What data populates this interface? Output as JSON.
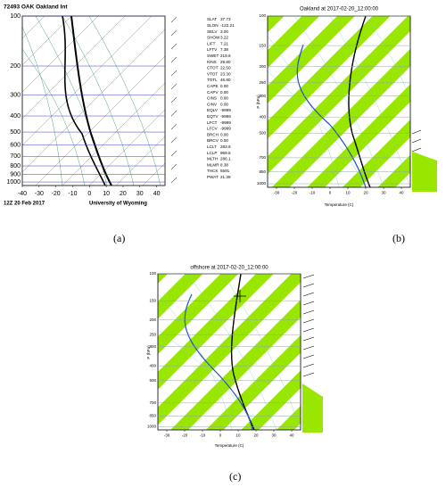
{
  "panels": [
    {
      "label": "(a)",
      "title": "72493 OAK Oakland Int",
      "footer_left": "12Z 20 Feb 2017",
      "footer_right": "University of Wyoming",
      "pressure_range": [
        100,
        1050
      ],
      "pressure_ticks": [
        100,
        200,
        300,
        400,
        500,
        600,
        700,
        800,
        900,
        1000
      ],
      "temperature_range": [
        -40,
        45
      ],
      "temperature_ticks": [
        -40,
        -30,
        -20,
        -10,
        0,
        10,
        20,
        30,
        40
      ],
      "indices": [
        {
          "name": "SLAT",
          "value": "37.73"
        },
        {
          "name": "SLON",
          "value": "-122.21"
        },
        {
          "name": "SELV",
          "value": "3.00"
        },
        {
          "name": "SHOW",
          "value": "3.22"
        },
        {
          "name": "LIFT",
          "value": "7.21"
        },
        {
          "name": "LFTV",
          "value": "7.38"
        },
        {
          "name": "SWET",
          "value": "219.6"
        },
        {
          "name": "KINX",
          "value": "29.80"
        },
        {
          "name": "CTOT",
          "value": "22.50"
        },
        {
          "name": "VTOT",
          "value": "23.30"
        },
        {
          "name": "TOTL",
          "value": "45.80"
        },
        {
          "name": "CAPE",
          "value": "0.00"
        },
        {
          "name": "CAPV",
          "value": "0.00"
        },
        {
          "name": "CINS",
          "value": "0.00"
        },
        {
          "name": "CINV",
          "value": "0.00"
        },
        {
          "name": "EQLV",
          "value": "-9999"
        },
        {
          "name": "EQTV",
          "value": "-9999"
        },
        {
          "name": "LFCT",
          "value": "-9999"
        },
        {
          "name": "LFCV",
          "value": "-9999"
        },
        {
          "name": "BRCH",
          "value": "0.00"
        },
        {
          "name": "BRCV",
          "value": "0.00"
        },
        {
          "name": "LCLT",
          "value": "283.6"
        },
        {
          "name": "LCLP",
          "value": "969.5"
        },
        {
          "name": "MLTH",
          "value": "286.1"
        },
        {
          "name": "MLMR",
          "value": "8.38"
        },
        {
          "name": "THCK",
          "value": "5591"
        },
        {
          "name": "PWAT",
          "value": "21.39"
        }
      ]
    },
    {
      "label": "(b)",
      "title": "Oakland at 2017-02-20_12:00:00",
      "y_label": "P (hPa)",
      "x_label": "Temperature (C)",
      "pressure_range": [
        100,
        1050
      ],
      "pressure_ticks": [
        100,
        150,
        200,
        250,
        300,
        400,
        500,
        700,
        850,
        1000
      ],
      "temperature_range": [
        -35,
        45
      ],
      "temperature_ticks": [
        -30,
        -20,
        -10,
        0,
        10,
        20,
        30,
        40
      ]
    },
    {
      "label": "(c)",
      "title": "offshore at 2017-02-20_12:00:00",
      "y_label": "P (hPa)",
      "x_label": "Temperature (C)",
      "pressure_range": [
        100,
        1050
      ],
      "pressure_ticks": [
        100,
        150,
        200,
        250,
        300,
        400,
        500,
        700,
        850,
        1000
      ],
      "temperature_range": [
        -35,
        45
      ],
      "temperature_ticks": [
        -30,
        -20,
        -10,
        0,
        10,
        20,
        30,
        40
      ]
    }
  ]
}
